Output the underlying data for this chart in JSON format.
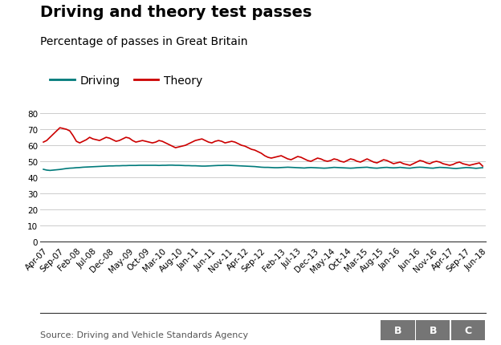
{
  "title": "Driving and theory test passes",
  "subtitle": "Percentage of passes in Great Britain",
  "source": "Source: Driving and Vehicle Standards Agency",
  "driving_color": "#007a7a",
  "theory_color": "#cc0000",
  "ylim": [
    0,
    80
  ],
  "yticks": [
    0,
    10,
    20,
    30,
    40,
    50,
    60,
    70,
    80
  ],
  "background_color": "#ffffff",
  "grid_color": "#cccccc",
  "title_fontsize": 14,
  "subtitle_fontsize": 10,
  "legend_fontsize": 10,
  "tick_fontsize": 7.5,
  "source_fontsize": 8,
  "tick_labels": [
    "Apr-07",
    "Sep-07",
    "Feb-08",
    "Jul-08",
    "Dec-08",
    "May-09",
    "Oct-09",
    "Mar-10",
    "Aug-10",
    "Jan-11",
    "Jun-11",
    "Nov-11",
    "Apr-12",
    "Sep-12",
    "Feb-13",
    "Jul-13",
    "Dec-13",
    "May-14",
    "Oct-14",
    "Mar-15",
    "Aug-15",
    "Jan-16",
    "Jun-16",
    "Nov-16",
    "Apr-17",
    "Sep-17",
    "Jun-18"
  ],
  "driving_values": [
    45.0,
    44.5,
    44.3,
    44.5,
    44.7,
    44.9,
    45.2,
    45.5,
    45.7,
    45.8,
    46.0,
    46.1,
    46.3,
    46.4,
    46.5,
    46.6,
    46.7,
    46.8,
    46.9,
    47.0,
    47.1,
    47.1,
    47.2,
    47.2,
    47.3,
    47.3,
    47.4,
    47.4,
    47.4,
    47.5,
    47.5,
    47.5,
    47.5,
    47.5,
    47.5,
    47.4,
    47.5,
    47.5,
    47.6,
    47.6,
    47.5,
    47.5,
    47.4,
    47.3,
    47.3,
    47.2,
    47.2,
    47.1,
    47.0,
    47.0,
    47.1,
    47.2,
    47.3,
    47.4,
    47.4,
    47.5,
    47.5,
    47.4,
    47.3,
    47.2,
    47.1,
    47.0,
    46.9,
    46.8,
    46.7,
    46.5,
    46.3,
    46.2,
    46.2,
    46.1,
    46.0,
    46.0,
    46.1,
    46.2,
    46.3,
    46.2,
    46.1,
    46.0,
    45.9,
    45.8,
    46.0,
    46.1,
    46.0,
    45.9,
    45.8,
    45.7,
    45.8,
    46.0,
    46.2,
    46.1,
    46.0,
    45.9,
    45.8,
    45.7,
    45.8,
    46.0,
    46.1,
    46.2,
    46.3,
    46.0,
    45.8,
    45.7,
    45.9,
    46.1,
    46.2,
    46.0,
    45.9,
    46.0,
    46.2,
    46.0,
    45.8,
    45.7,
    46.0,
    46.2,
    46.3,
    46.2,
    46.0,
    45.8,
    45.7,
    46.0,
    46.2,
    46.1,
    46.0,
    45.8,
    45.6,
    45.5,
    45.7,
    45.9,
    46.1,
    46.0,
    45.8,
    45.6,
    45.8,
    46.0
  ],
  "theory_values": [
    62.0,
    63.0,
    65.0,
    67.0,
    69.0,
    71.0,
    70.5,
    70.0,
    69.0,
    66.0,
    62.5,
    61.5,
    62.5,
    63.5,
    65.0,
    64.0,
    63.5,
    63.0,
    64.0,
    65.0,
    64.5,
    63.5,
    62.5,
    63.0,
    64.0,
    65.0,
    64.5,
    63.0,
    62.0,
    62.5,
    63.0,
    62.5,
    62.0,
    61.5,
    62.0,
    63.0,
    62.5,
    61.5,
    60.5,
    59.5,
    58.5,
    59.0,
    59.5,
    60.0,
    61.0,
    62.0,
    63.0,
    63.5,
    64.0,
    63.0,
    62.0,
    61.5,
    62.5,
    63.0,
    62.5,
    61.5,
    62.0,
    62.5,
    62.0,
    61.0,
    60.0,
    59.5,
    58.5,
    57.5,
    57.0,
    56.0,
    55.0,
    53.5,
    52.5,
    52.0,
    52.5,
    53.0,
    53.5,
    52.5,
    51.5,
    51.0,
    52.0,
    53.0,
    52.5,
    51.5,
    50.5,
    50.0,
    51.0,
    52.0,
    51.5,
    50.5,
    50.0,
    50.5,
    51.5,
    51.0,
    50.0,
    49.5,
    50.5,
    51.5,
    51.0,
    50.0,
    49.5,
    50.5,
    51.5,
    50.5,
    49.5,
    49.0,
    50.0,
    51.0,
    50.5,
    49.5,
    48.5,
    49.0,
    49.5,
    48.5,
    48.0,
    47.5,
    48.5,
    49.5,
    50.5,
    50.0,
    49.0,
    48.5,
    49.5,
    50.0,
    49.5,
    48.5,
    48.0,
    47.5,
    48.0,
    49.0,
    49.5,
    48.5,
    48.0,
    47.5,
    48.0,
    48.5,
    49.0,
    47.0
  ]
}
